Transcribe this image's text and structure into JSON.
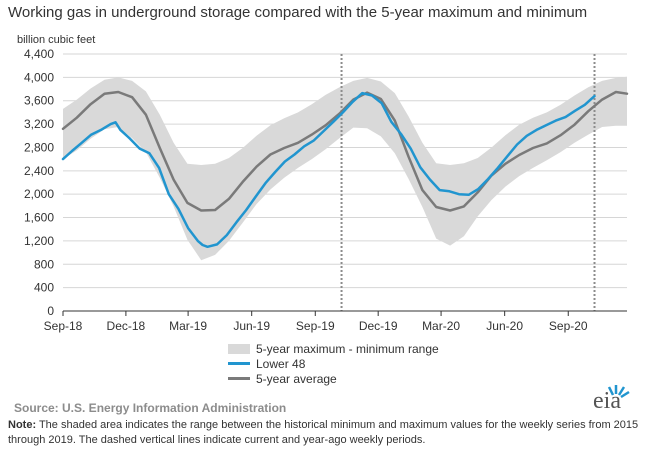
{
  "title": "Working gas in underground  storage compared with the 5-year maximum and minimum",
  "ylabel": "billion cubic feet",
  "legend": {
    "band": "5-year maximum - minimum range",
    "lower48": "Lower 48",
    "avg": "5-year average"
  },
  "source": "Source:  U.S. Energy Information Administration",
  "note_label": "Note:",
  "note_text": " The shaded area indicates the range between the historical minimum and maximum values for the weekly series from 2015 through 2019. The dashed vertical lines indicate current and year-ago weekly periods.",
  "logo_text": "eia",
  "colors": {
    "band": "#d9d9d9",
    "lower48": "#2195cf",
    "avg": "#7a7a7a",
    "grid": "#d6d6d6",
    "axis": "#333333",
    "dashed": "#8c8c8c"
  },
  "chart_data": {
    "type": "line",
    "x_axis": {
      "type": "date",
      "range": [
        "2018-09-01",
        "2020-11-25"
      ],
      "ticks": [
        {
          "date": "2018-09-01",
          "label": "Sep-18"
        },
        {
          "date": "2018-12-01",
          "label": "Dec-18"
        },
        {
          "date": "2019-03-01",
          "label": "Mar-19"
        },
        {
          "date": "2019-06-01",
          "label": "Jun-19"
        },
        {
          "date": "2019-09-01",
          "label": "Sep-19"
        },
        {
          "date": "2019-12-01",
          "label": "Dec-19"
        },
        {
          "date": "2020-03-01",
          "label": "Mar-20"
        },
        {
          "date": "2020-06-01",
          "label": "Jun-20"
        },
        {
          "date": "2020-09-01",
          "label": "Sep-20"
        }
      ]
    },
    "y_axis": {
      "range": [
        0,
        4400
      ],
      "ticks": [
        0,
        400,
        800,
        1200,
        1600,
        2000,
        2400,
        2800,
        3200,
        3600,
        4000,
        4400
      ],
      "tick_labels": [
        "0",
        "400",
        "800",
        "1,200",
        "1,600",
        "2,000",
        "2,400",
        "2,800",
        "3,200",
        "3,600",
        "4,000",
        "4,400"
      ]
    },
    "grid": true,
    "dashed_vlines": [
      "2019-10-09",
      "2020-10-09"
    ],
    "band": {
      "dates": [
        "2018-09-01",
        "2018-09-21",
        "2018-10-11",
        "2018-10-31",
        "2018-11-20",
        "2018-12-10",
        "2018-12-30",
        "2019-01-19",
        "2019-02-08",
        "2019-02-28",
        "2019-03-20",
        "2019-04-09",
        "2019-04-29",
        "2019-05-19",
        "2019-06-08",
        "2019-06-28",
        "2019-07-18",
        "2019-08-07",
        "2019-08-27",
        "2019-09-16",
        "2019-10-06",
        "2019-10-26",
        "2019-11-15",
        "2019-12-05",
        "2019-12-25",
        "2020-01-14",
        "2020-02-03",
        "2020-02-23",
        "2020-03-14",
        "2020-04-03",
        "2020-04-23",
        "2020-05-13",
        "2020-06-02",
        "2020-06-22",
        "2020-07-12",
        "2020-08-01",
        "2020-08-21",
        "2020-09-10",
        "2020-09-30",
        "2020-10-20",
        "2020-11-09",
        "2020-11-25"
      ],
      "max": [
        3460,
        3620,
        3810,
        3960,
        4000,
        3940,
        3760,
        3360,
        2880,
        2520,
        2500,
        2520,
        2620,
        2790,
        3000,
        3180,
        3300,
        3400,
        3540,
        3700,
        3830,
        3940,
        3990,
        3930,
        3730,
        3330,
        2880,
        2530,
        2500,
        2530,
        2620,
        2800,
        3010,
        3190,
        3310,
        3400,
        3530,
        3690,
        3830,
        3940,
        3990,
        4010
      ],
      "min": [
        2600,
        2750,
        2950,
        3110,
        3150,
        2960,
        2720,
        2280,
        1790,
        1220,
        870,
        960,
        1200,
        1510,
        1830,
        2080,
        2280,
        2450,
        2600,
        2770,
        2960,
        3140,
        3130,
        2990,
        2700,
        2260,
        1780,
        1240,
        1120,
        1280,
        1620,
        1900,
        2130,
        2310,
        2450,
        2580,
        2720,
        2880,
        3020,
        3150,
        3170,
        3170
      ]
    },
    "series": [
      {
        "name": "Lower 48",
        "dates": [
          "2018-09-01",
          "2018-09-14",
          "2018-09-28",
          "2018-10-12",
          "2018-10-26",
          "2018-11-09",
          "2018-11-16",
          "2018-11-23",
          "2018-12-07",
          "2018-12-21",
          "2019-01-04",
          "2019-01-18",
          "2019-02-01",
          "2019-02-15",
          "2019-03-01",
          "2019-03-15",
          "2019-03-22",
          "2019-03-29",
          "2019-04-12",
          "2019-04-26",
          "2019-05-10",
          "2019-05-24",
          "2019-06-07",
          "2019-06-21",
          "2019-07-05",
          "2019-07-19",
          "2019-08-02",
          "2019-08-16",
          "2019-08-30",
          "2019-09-13",
          "2019-09-27",
          "2019-10-11",
          "2019-10-25",
          "2019-11-08",
          "2019-11-22",
          "2019-12-06",
          "2019-12-20",
          "2020-01-03",
          "2020-01-17",
          "2020-01-31",
          "2020-02-14",
          "2020-02-28",
          "2020-03-13",
          "2020-03-27",
          "2020-04-10",
          "2020-04-24",
          "2020-05-08",
          "2020-05-22",
          "2020-06-05",
          "2020-06-19",
          "2020-07-03",
          "2020-07-17",
          "2020-07-31",
          "2020-08-14",
          "2020-08-28",
          "2020-09-11",
          "2020-09-25",
          "2020-10-09"
        ],
        "values": [
          2600,
          2740,
          2880,
          3020,
          3100,
          3200,
          3230,
          3100,
          2950,
          2780,
          2700,
          2450,
          2000,
          1750,
          1420,
          1200,
          1130,
          1100,
          1140,
          1300,
          1520,
          1730,
          1960,
          2190,
          2380,
          2560,
          2680,
          2820,
          2920,
          3080,
          3240,
          3400,
          3580,
          3730,
          3690,
          3560,
          3240,
          3030,
          2780,
          2460,
          2250,
          2070,
          2050,
          2000,
          1990,
          2090,
          2260,
          2450,
          2650,
          2850,
          3000,
          3100,
          3180,
          3260,
          3320,
          3430,
          3530,
          3680
        ]
      },
      {
        "name": "5-year average",
        "dates": [
          "2018-09-01",
          "2018-09-21",
          "2018-10-11",
          "2018-10-31",
          "2018-11-20",
          "2018-12-10",
          "2018-12-30",
          "2019-01-19",
          "2019-02-08",
          "2019-02-28",
          "2019-03-20",
          "2019-04-09",
          "2019-04-29",
          "2019-05-19",
          "2019-06-08",
          "2019-06-28",
          "2019-07-18",
          "2019-08-07",
          "2019-08-27",
          "2019-09-16",
          "2019-10-06",
          "2019-10-26",
          "2019-11-15",
          "2019-12-05",
          "2019-12-25",
          "2020-01-14",
          "2020-02-03",
          "2020-02-23",
          "2020-03-14",
          "2020-04-03",
          "2020-04-23",
          "2020-05-13",
          "2020-06-02",
          "2020-06-22",
          "2020-07-12",
          "2020-08-01",
          "2020-08-21",
          "2020-09-10",
          "2020-09-30",
          "2020-10-20",
          "2020-11-09",
          "2020-11-25"
        ],
        "values": [
          3120,
          3310,
          3540,
          3720,
          3750,
          3660,
          3360,
          2790,
          2250,
          1850,
          1720,
          1730,
          1920,
          2210,
          2470,
          2680,
          2790,
          2880,
          3020,
          3180,
          3380,
          3620,
          3740,
          3630,
          3260,
          2640,
          2070,
          1780,
          1720,
          1790,
          2030,
          2320,
          2520,
          2670,
          2790,
          2870,
          3010,
          3190,
          3420,
          3620,
          3750,
          3720
        ]
      }
    ]
  }
}
